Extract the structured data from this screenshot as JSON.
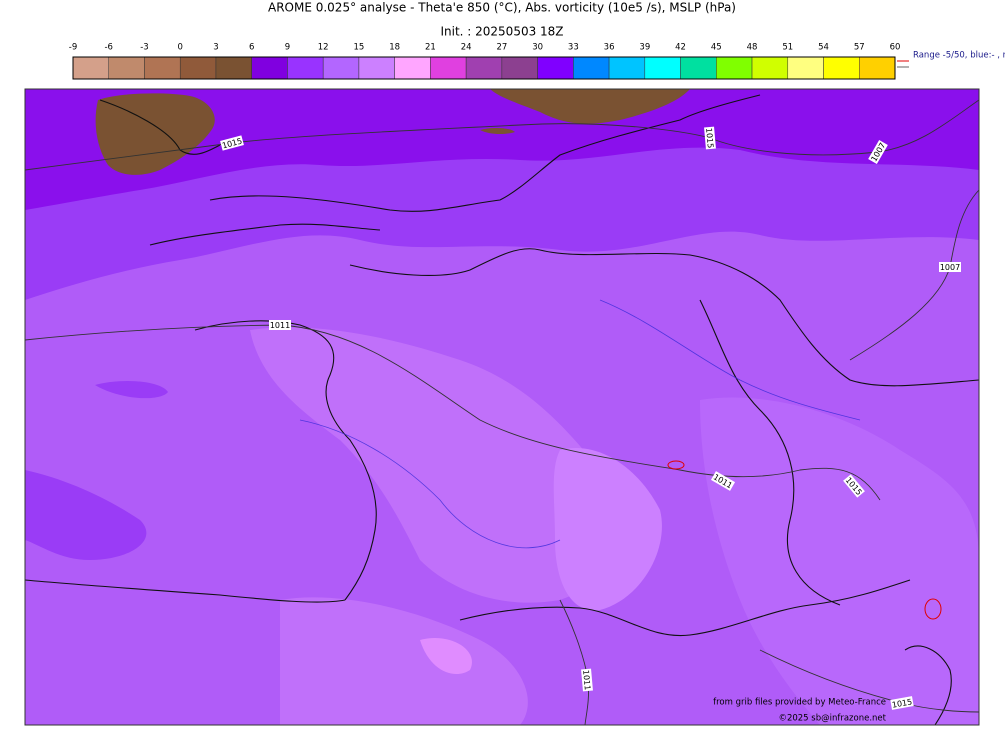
{
  "header": {
    "title": "AROME 0.025° analyse - Theta'e 850 (°C), Abs. vorticity (10e5 /s), MSLP (hPa)",
    "subtitle": "Init. : 20250503 18Z"
  },
  "colorbar": {
    "ticks": [
      -9,
      -6,
      -3,
      0,
      3,
      6,
      9,
      12,
      15,
      18,
      21,
      24,
      27,
      30,
      33,
      36,
      39,
      42,
      45,
      48,
      51,
      54,
      57,
      60
    ],
    "colors": [
      "#d4a08a",
      "#c08a6c",
      "#b07454",
      "#905a3a",
      "#7a5232",
      "#8000e0",
      "#9933ff",
      "#b366ff",
      "#cc80ff",
      "#ffa6ff",
      "#e040e0",
      "#a040b0",
      "#8c4090",
      "#8000ff",
      "#0088ff",
      "#00c4ff",
      "#00ffff",
      "#00e0a0",
      "#80ff00",
      "#d0ff00",
      "#ffff80",
      "#ffff00",
      "#ffd000"
    ],
    "legend_note": "Range -5/50, blue:- , r"
  },
  "isobar_labels": [
    "1015",
    "1015",
    "1007",
    "1007",
    "1011",
    "1011",
    "1015",
    "1011",
    "1015"
  ],
  "credits": [
    "from grib files provided by Meteo-France",
    "©2025 sb@infrazone.net"
  ]
}
